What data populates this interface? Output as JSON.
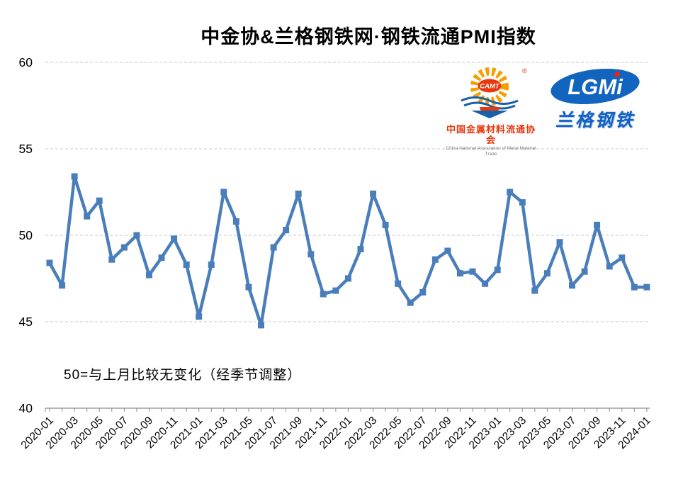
{
  "title": "中金协&兰格钢铁网·钢铁流通PMI指数",
  "annotation": "50=与上月比较无变化（经季节调整）",
  "logos": {
    "camt": {
      "acronym": "CAMT",
      "registered": "®",
      "name_cn": "中国金属材料流通协会",
      "name_en": "China National Association of Metal Material Trade"
    },
    "lgmi": {
      "acronym": "LGMi",
      "name_cn": "兰格钢铁"
    }
  },
  "chart_data": {
    "type": "line",
    "title": "中金协&兰格钢铁网·钢铁流通PMI指数",
    "xlabel": "",
    "ylabel": "",
    "ylim": [
      40,
      60
    ],
    "yticks": [
      40,
      45,
      50,
      55,
      60
    ],
    "xtick_label_step": 2,
    "grid": "horizontal-dashed",
    "legend": "none",
    "marker": "square",
    "colors": {
      "line": "#4A7EBB",
      "grid": "#C9C9C9",
      "axis": "#8C8C8C",
      "text": "#000000"
    },
    "x": [
      "2020-01",
      "2020-02",
      "2020-03",
      "2020-04",
      "2020-05",
      "2020-06",
      "2020-07",
      "2020-08",
      "2020-09",
      "2020-10",
      "2020-11",
      "2020-12",
      "2021-01",
      "2021-02",
      "2021-03",
      "2021-04",
      "2021-05",
      "2021-06",
      "2021-07",
      "2021-08",
      "2021-09",
      "2021-10",
      "2021-11",
      "2021-12",
      "2022-01",
      "2022-02",
      "2022-03",
      "2022-04",
      "2022-05",
      "2022-06",
      "2022-07",
      "2022-08",
      "2022-09",
      "2022-10",
      "2022-11",
      "2022-12",
      "2023-01",
      "2023-02",
      "2023-03",
      "2023-04",
      "2023-05",
      "2023-06",
      "2023-07",
      "2023-08",
      "2023-09",
      "2023-10",
      "2023-11",
      "2023-12",
      "2024-01"
    ],
    "series": [
      {
        "name": "钢铁流通PMI指数",
        "values": [
          48.4,
          47.1,
          53.4,
          51.1,
          52.0,
          48.6,
          49.3,
          50.0,
          47.7,
          48.7,
          49.8,
          48.3,
          45.3,
          48.3,
          52.5,
          50.8,
          47.0,
          44.8,
          49.3,
          50.3,
          52.4,
          48.9,
          46.6,
          46.8,
          47.5,
          49.2,
          52.4,
          50.6,
          47.2,
          46.1,
          46.7,
          48.6,
          49.1,
          47.8,
          47.9,
          47.2,
          48.0,
          52.5,
          51.9,
          46.8,
          47.8,
          49.6,
          47.1,
          47.9,
          50.6,
          48.2,
          48.7,
          47.0,
          47.0
        ]
      }
    ]
  }
}
